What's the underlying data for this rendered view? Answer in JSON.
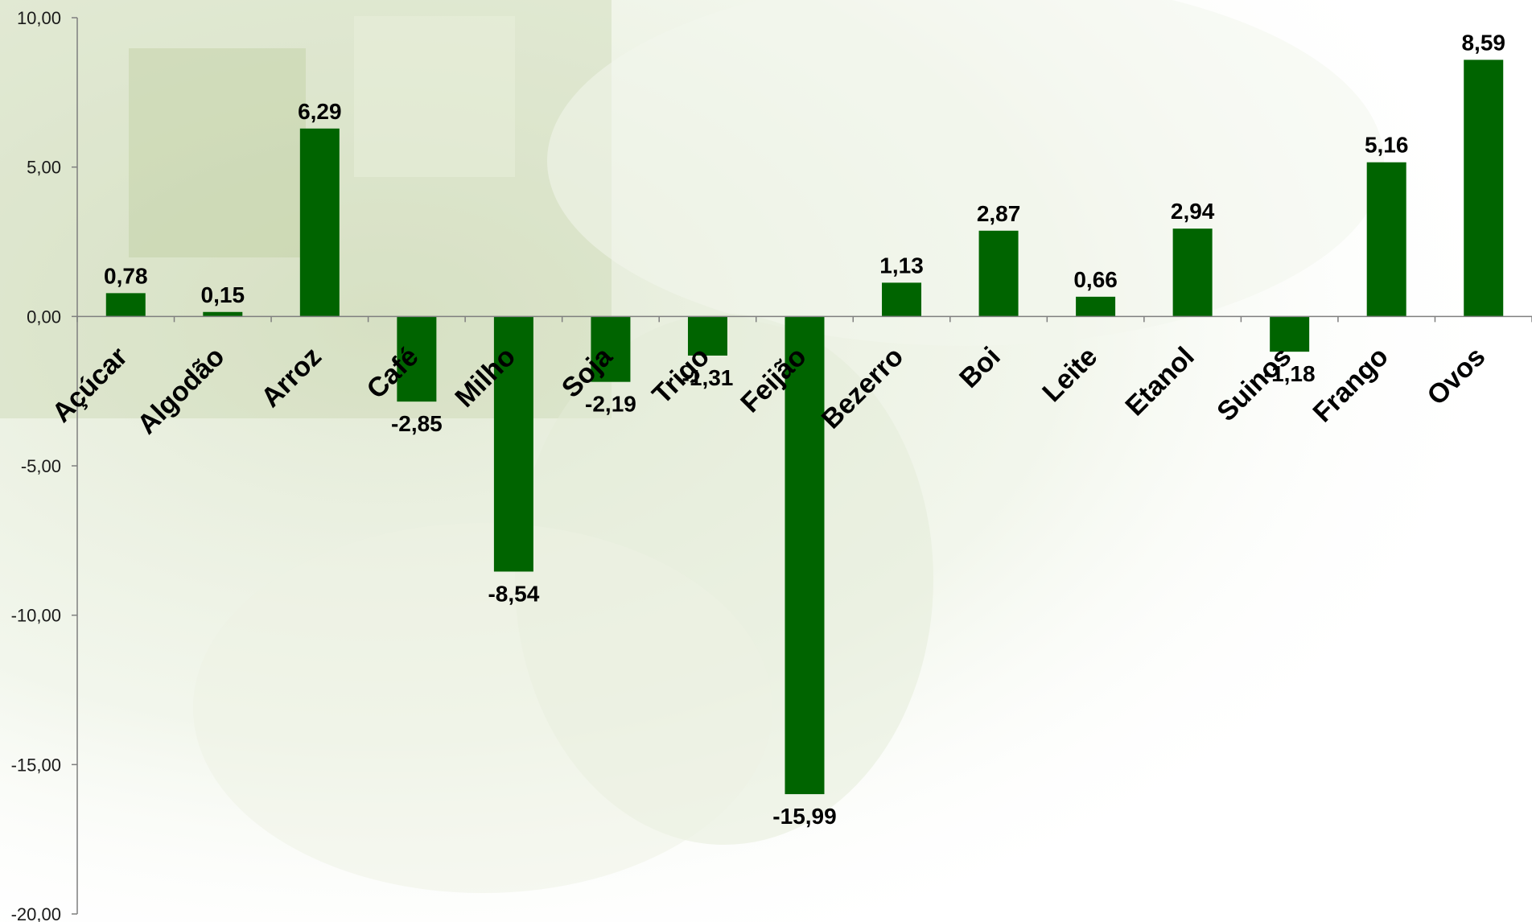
{
  "chart_data": {
    "type": "bar",
    "categories": [
      "Açúcar",
      "Algodão",
      "Arroz",
      "Café",
      "Milho",
      "Soja",
      "Trigo",
      "Feijão",
      "Bezerro",
      "Boi",
      "Leite",
      "Etanol",
      "Suinos",
      "Frango",
      "Ovos"
    ],
    "values": [
      0.78,
      0.15,
      6.29,
      -2.85,
      -8.54,
      -2.19,
      -1.31,
      -15.99,
      1.13,
      2.87,
      0.66,
      2.94,
      -1.18,
      5.16,
      8.59
    ],
    "value_labels": [
      "0,78",
      "0,15",
      "6,29",
      "-2,85",
      "-8,54",
      "-2,19",
      "-1,31",
      "-15,99",
      "1,13",
      "2,87",
      "0,66",
      "2,94",
      "-1,18",
      "5,16",
      "8,59"
    ],
    "ylim": [
      -20,
      10
    ],
    "y_ticks": [
      10,
      5,
      0,
      -5,
      -10,
      -15,
      -20
    ],
    "y_tick_labels": [
      "10,00",
      "5,00",
      "0,00",
      "-5,00",
      "-10,00",
      "-15,00",
      "-20,00"
    ],
    "title": "",
    "xlabel": "",
    "ylabel": "",
    "grid": false,
    "legend": "none",
    "colors": {
      "bar": "#006400",
      "axis": "#7f7f7f",
      "background_tint": "#dfe8cf"
    }
  }
}
